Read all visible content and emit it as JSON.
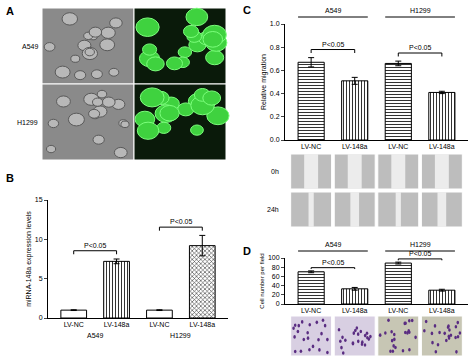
{
  "panel_a": {
    "panel": "A",
    "rows": [
      "A549",
      "H1299"
    ]
  },
  "chart_data": [
    {
      "panel": "B",
      "type": "bar",
      "ylabel": "miRNA-148a expression levels",
      "categories": [
        "LV-NC",
        "LV-148a",
        "LV-NC",
        "LV-148a"
      ],
      "groups": [
        "A549",
        "H1299"
      ],
      "values": [
        1,
        7.2,
        1,
        9.2
      ],
      "errors": [
        0.05,
        0.3,
        0.05,
        1.3
      ],
      "color": "#ffffff",
      "ylim": [
        0,
        15
      ],
      "yticks": [
        0,
        5,
        10,
        15
      ],
      "grid": false,
      "comparisons": [
        {
          "between": [
            0,
            1
          ],
          "label": "P<0.05"
        },
        {
          "between": [
            2,
            3
          ],
          "label": "P<0.05"
        }
      ]
    },
    {
      "panel": "C",
      "type": "bar",
      "ylabel": "Relative migration",
      "categories": [
        "LV-NC",
        "LV-148a",
        "LV-NC",
        "LV-148a"
      ],
      "groups": [
        "A549",
        "H1299"
      ],
      "values": [
        0.67,
        0.51,
        0.66,
        0.41
      ],
      "errors": [
        0.04,
        0.03,
        0.02,
        0.01
      ],
      "color": "#ffffff",
      "ylim": [
        0,
        1
      ],
      "yticks": [
        {
          "value": 0,
          "label": "0.0"
        },
        0.2,
        0.4,
        0.6,
        0.8,
        {
          "value": 1,
          "label": "1.0"
        }
      ],
      "grid": false,
      "comparisons": [
        {
          "between": [
            0,
            1
          ],
          "label": "P<0.05"
        },
        {
          "between": [
            2,
            3
          ],
          "label": "P<0.05"
        }
      ],
      "image_rows": [
        "0h",
        "24h"
      ]
    },
    {
      "panel": "D",
      "type": "bar",
      "ylabel": "Cell number per field",
      "categories": [
        "LV-NC",
        "LV-148a",
        "LV-NC",
        "LV-148a"
      ],
      "groups": [
        "A549",
        "H1299"
      ],
      "values": [
        70,
        33,
        89,
        30
      ],
      "errors": [
        2,
        3,
        2,
        2
      ],
      "color": "#ffffff",
      "ylim": [
        0,
        100
      ],
      "yticks": [
        0,
        20,
        40,
        60,
        80,
        100
      ],
      "grid": false,
      "comparisons": [
        {
          "between": [
            0,
            1
          ],
          "label": "P<0.05"
        },
        {
          "between": [
            2,
            3
          ],
          "label": "P<0.05"
        }
      ],
      "image_rows": []
    }
  ]
}
